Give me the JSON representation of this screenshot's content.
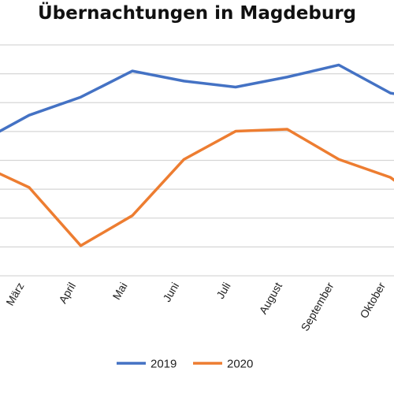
{
  "chart_data": {
    "type": "line",
    "title": "Übernachtungen in Magdeburg",
    "categories": [
      "März",
      "April",
      "Mai",
      "Juni",
      "Juli",
      "August",
      "September",
      "Oktober"
    ],
    "series": [
      {
        "name": "2019",
        "color": "#4472C4",
        "values": [
          65,
          74,
          87,
          82,
          79,
          84,
          90,
          76
        ]
      },
      {
        "name": "2020",
        "color": "#ED7D31",
        "values": [
          29,
          0,
          15,
          43,
          57,
          58,
          43,
          34
        ]
      }
    ],
    "ylim": [
      -15,
      100
    ],
    "grid": true,
    "legend": "bottom",
    "edge_values": {
      "2019": {
        "before": 51,
        "after": 72
      },
      "2020": {
        "before": 41,
        "after": 15
      }
    }
  }
}
